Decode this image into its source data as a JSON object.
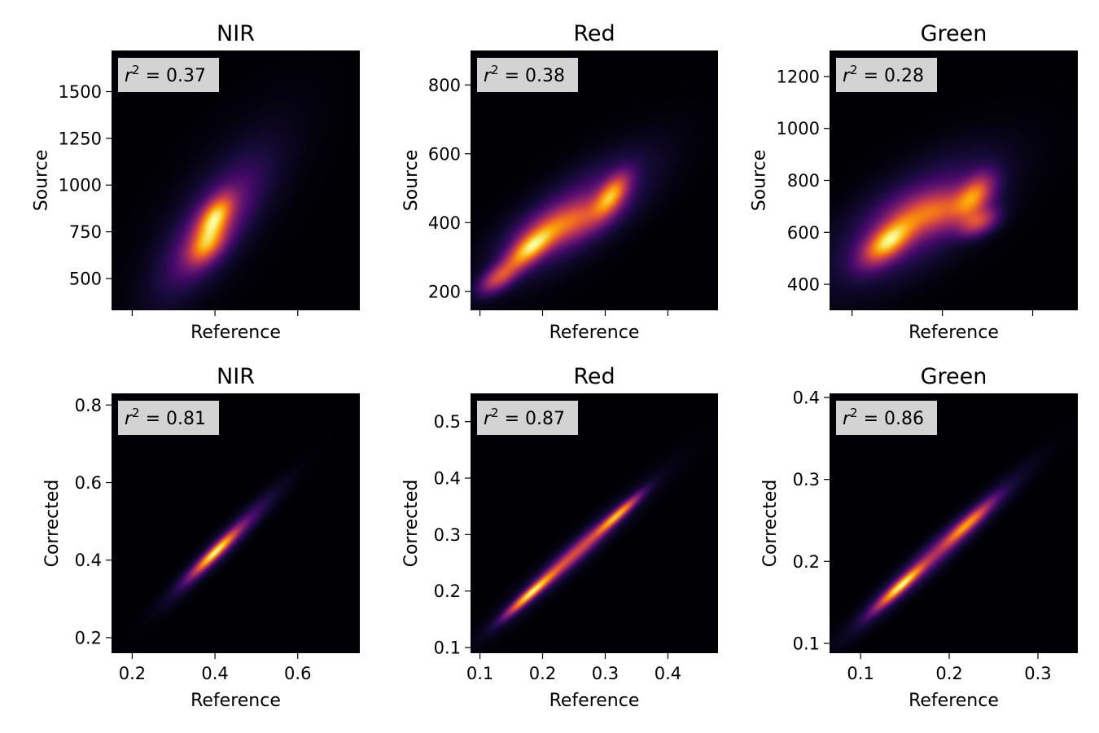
{
  "colormap": "inferno",
  "colors": {
    "background": "#ffffff",
    "stat_box": "#d3d3d3",
    "plot_bg": "#000004"
  },
  "chart_data": [
    {
      "type": "heatmap",
      "title": "NIR",
      "xlabel": "Reference",
      "ylabel": "Source",
      "xlim": [
        0.15,
        0.75
      ],
      "ylim": [
        330,
        1720
      ],
      "xticks": [
        0.2,
        0.4,
        0.6
      ],
      "xtick_labels": [
        "",
        "",
        ""
      ],
      "yticks": [
        500,
        750,
        1000,
        1250,
        1500
      ],
      "ytick_labels": [
        "500",
        "750",
        "1000",
        "1250",
        "1500"
      ],
      "r2_label": "r",
      "r2_value": "0.37",
      "density_modes": [
        {
          "x": 0.4,
          "y": 830,
          "sx": 0.028,
          "sy": 75,
          "rho": 0.55,
          "w": 1.0
        },
        {
          "x": 0.38,
          "y": 680,
          "sx": 0.03,
          "sy": 70,
          "rho": 0.5,
          "w": 0.8
        },
        {
          "x": 0.39,
          "y": 760,
          "sx": 0.075,
          "sy": 210,
          "rho": 0.75,
          "w": 0.35
        },
        {
          "x": 0.42,
          "y": 900,
          "sx": 0.11,
          "sy": 300,
          "rho": 0.7,
          "w": 0.1
        }
      ]
    },
    {
      "type": "heatmap",
      "title": "Red",
      "xlabel": "Reference",
      "ylabel": "Source",
      "xlim": [
        0.085,
        0.48
      ],
      "ylim": [
        145,
        900
      ],
      "xticks": [
        0.1,
        0.2,
        0.3,
        0.4
      ],
      "xtick_labels": [
        "",
        "",
        "",
        ""
      ],
      "yticks": [
        200,
        400,
        600,
        800
      ],
      "ytick_labels": [
        "200",
        "400",
        "600",
        "800"
      ],
      "r2_label": "r",
      "r2_value": "0.38",
      "density_modes": [
        {
          "x": 0.18,
          "y": 325,
          "sx": 0.025,
          "sy": 40,
          "rho": 0.7,
          "w": 1.0
        },
        {
          "x": 0.31,
          "y": 480,
          "sx": 0.018,
          "sy": 40,
          "rho": 0.6,
          "w": 0.85
        },
        {
          "x": 0.24,
          "y": 400,
          "sx": 0.045,
          "sy": 45,
          "rho": 0.6,
          "w": 0.55
        },
        {
          "x": 0.13,
          "y": 240,
          "sx": 0.02,
          "sy": 30,
          "rho": 0.6,
          "w": 0.6
        },
        {
          "x": 0.25,
          "y": 420,
          "sx": 0.075,
          "sy": 110,
          "rho": 0.75,
          "w": 0.3
        }
      ]
    },
    {
      "type": "heatmap",
      "title": "Green",
      "xlabel": "Reference",
      "ylabel": "Source",
      "xlim": [
        0.075,
        0.35
      ],
      "ylim": [
        300,
        1300
      ],
      "xticks": [
        0.1,
        0.2,
        0.3
      ],
      "xtick_labels": [
        "",
        "",
        ""
      ],
      "yticks": [
        400,
        600,
        800,
        1000,
        1200
      ],
      "ytick_labels": [
        "400",
        "600",
        "800",
        "1000",
        "1200"
      ],
      "r2_label": "r",
      "r2_value": "0.28",
      "density_modes": [
        {
          "x": 0.14,
          "y": 565,
          "sx": 0.018,
          "sy": 55,
          "rho": 0.6,
          "w": 1.0
        },
        {
          "x": 0.235,
          "y": 740,
          "sx": 0.014,
          "sy": 55,
          "rho": 0.5,
          "w": 0.7
        },
        {
          "x": 0.24,
          "y": 640,
          "sx": 0.014,
          "sy": 35,
          "rho": 0.4,
          "w": 0.55
        },
        {
          "x": 0.19,
          "y": 680,
          "sx": 0.03,
          "sy": 55,
          "rho": 0.4,
          "w": 0.55
        },
        {
          "x": 0.17,
          "y": 650,
          "sx": 0.055,
          "sy": 150,
          "rho": 0.65,
          "w": 0.3
        }
      ]
    },
    {
      "type": "heatmap",
      "title": "NIR",
      "xlabel": "Reference",
      "ylabel": "Corrected",
      "xlim": [
        0.15,
        0.75
      ],
      "ylim": [
        0.16,
        0.83
      ],
      "xticks": [
        0.2,
        0.4,
        0.6
      ],
      "xtick_labels": [
        "0.2",
        "0.4",
        "0.6"
      ],
      "yticks": [
        0.2,
        0.4,
        0.6,
        0.8
      ],
      "ytick_labels": [
        "0.2",
        "0.4",
        "0.6",
        "0.8"
      ],
      "r2_label": "r",
      "r2_value": "0.81",
      "density_modes": [
        {
          "x": 0.4,
          "y": 0.42,
          "sx": 0.035,
          "sy": 0.037,
          "rho": 0.95,
          "w": 1.0
        },
        {
          "x": 0.42,
          "y": 0.44,
          "sx": 0.075,
          "sy": 0.08,
          "rho": 0.96,
          "w": 0.3
        }
      ]
    },
    {
      "type": "heatmap",
      "title": "Red",
      "xlabel": "Reference",
      "ylabel": "Corrected",
      "xlim": [
        0.085,
        0.48
      ],
      "ylim": [
        0.09,
        0.55
      ],
      "xticks": [
        0.1,
        0.2,
        0.3,
        0.4
      ],
      "xtick_labels": [
        "0.1",
        "0.2",
        "0.3",
        "0.4"
      ],
      "yticks": [
        0.1,
        0.2,
        0.3,
        0.4,
        0.5
      ],
      "ytick_labels": [
        "0.1",
        "0.2",
        "0.3",
        "0.4",
        "0.5"
      ],
      "r2_label": "r",
      "r2_value": "0.87",
      "density_modes": [
        {
          "x": 0.18,
          "y": 0.195,
          "sx": 0.025,
          "sy": 0.025,
          "rho": 0.96,
          "w": 1.0
        },
        {
          "x": 0.32,
          "y": 0.335,
          "sx": 0.022,
          "sy": 0.022,
          "rho": 0.95,
          "w": 0.85
        },
        {
          "x": 0.25,
          "y": 0.265,
          "sx": 0.045,
          "sy": 0.045,
          "rho": 0.97,
          "w": 0.5
        },
        {
          "x": 0.25,
          "y": 0.265,
          "sx": 0.08,
          "sy": 0.08,
          "rho": 0.97,
          "w": 0.15
        }
      ]
    },
    {
      "type": "heatmap",
      "title": "Green",
      "xlabel": "Reference",
      "ylabel": "Corrected",
      "xlim": [
        0.065,
        0.345
      ],
      "ylim": [
        0.088,
        0.405
      ],
      "xticks": [
        0.1,
        0.2,
        0.3
      ],
      "xtick_labels": [
        "0.1",
        "0.2",
        "0.3"
      ],
      "yticks": [
        0.1,
        0.2,
        0.3,
        0.4
      ],
      "ytick_labels": [
        "0.1",
        "0.2",
        "0.3",
        "0.4"
      ],
      "r2_label": "r",
      "r2_value": "0.86",
      "density_modes": [
        {
          "x": 0.145,
          "y": 0.17,
          "sx": 0.018,
          "sy": 0.018,
          "rho": 0.95,
          "w": 1.0
        },
        {
          "x": 0.22,
          "y": 0.245,
          "sx": 0.018,
          "sy": 0.018,
          "rho": 0.94,
          "w": 0.7
        },
        {
          "x": 0.185,
          "y": 0.21,
          "sx": 0.05,
          "sy": 0.05,
          "rho": 0.97,
          "w": 0.35
        }
      ]
    }
  ]
}
